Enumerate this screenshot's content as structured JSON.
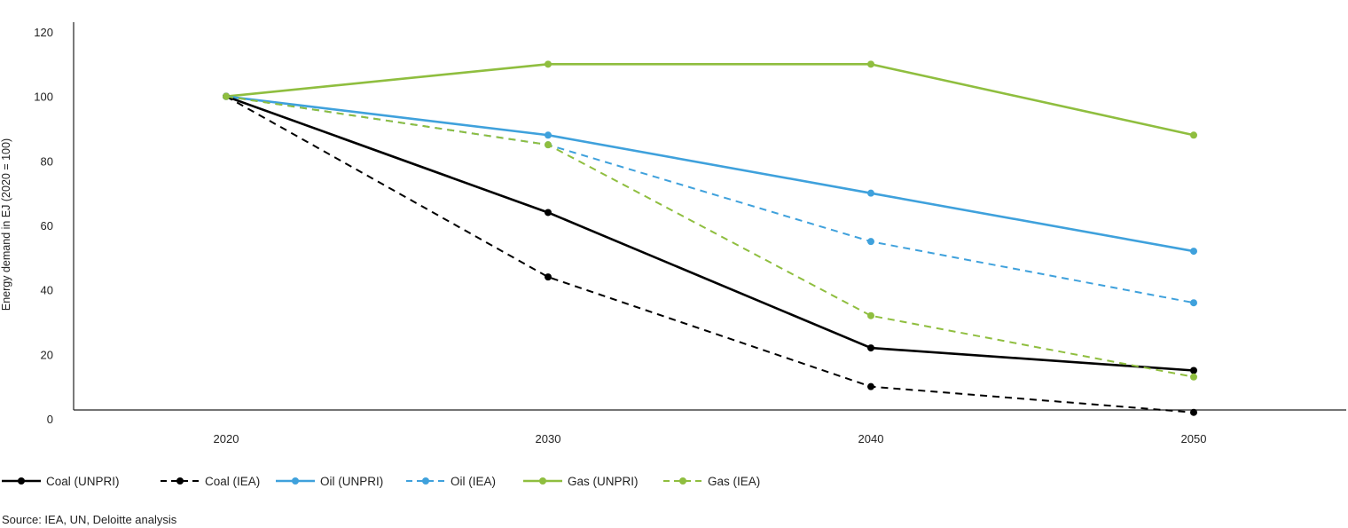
{
  "chart_data": {
    "type": "line",
    "x": [
      2020,
      2030,
      2040,
      2050
    ],
    "ylabel": "Energy demand in EJ (2020 = 100)",
    "ylim": [
      0,
      120
    ],
    "yticks": [
      0,
      20,
      40,
      60,
      80,
      100,
      120
    ],
    "grid": false,
    "legend_placement": "bottom",
    "series": [
      {
        "name": "Coal (UNPRI)",
        "values": [
          100,
          64,
          22,
          15
        ],
        "color": "#000000",
        "dashed": false
      },
      {
        "name": "Coal (IEA)",
        "values": [
          100,
          44,
          10,
          2
        ],
        "color": "#000000",
        "dashed": true
      },
      {
        "name": "Oil (UNPRI)",
        "values": [
          100,
          88,
          70,
          52
        ],
        "color": "#3fa1dc",
        "dashed": false
      },
      {
        "name": "Oil (IEA)",
        "values": [
          100,
          85,
          55,
          36
        ],
        "color": "#3fa1dc",
        "dashed": true
      },
      {
        "name": "Gas (UNPRI)",
        "values": [
          100,
          110,
          110,
          88
        ],
        "color": "#8fbe3f",
        "dashed": false
      },
      {
        "name": "Gas (IEA)",
        "values": [
          100,
          85,
          32,
          13
        ],
        "color": "#8fbe3f",
        "dashed": true
      }
    ]
  },
  "source": "Source: IEA, UN, Deloitte analysis"
}
